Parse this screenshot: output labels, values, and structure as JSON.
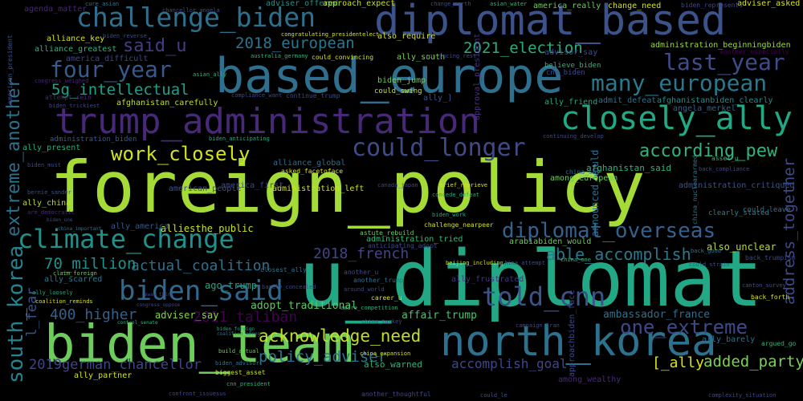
{
  "words": [
    {
      "text": "foreign_policy",
      "color": "#a5db36"
    },
    {
      "text": "u_diplomat",
      "color": "#22a884"
    },
    {
      "text": "biden_team",
      "color": "#6ccd5a"
    },
    {
      "text": "based_europe",
      "color": "#2e6f8e"
    },
    {
      "text": "diplomat_based",
      "color": "#3b528b"
    },
    {
      "text": "trump_administration",
      "color": "#482878"
    },
    {
      "text": "north_korea",
      "color": "#2c728e"
    },
    {
      "text": "challenge_biden",
      "color": "#2d708e"
    },
    {
      "text": "closely_ally",
      "color": "#22a884"
    },
    {
      "text": "climate_change",
      "color": "#20928c"
    },
    {
      "text": "could_longer",
      "color": "#3e4a89"
    },
    {
      "text": "biden_said",
      "color": "#31688e"
    },
    {
      "text": "diplomat_overseas",
      "color": "#34618d"
    },
    {
      "text": "many_european",
      "color": "#2a788e"
    },
    {
      "text": "last_year",
      "color": "#3e4c8a"
    },
    {
      "text": "four_year",
      "color": "#38598c"
    },
    {
      "text": "extreme_another",
      "color": "#2c718e"
    },
    {
      "text": "south_korea",
      "color": "#26828e"
    },
    {
      "text": "told_cnn",
      "color": "#3b528b"
    },
    {
      "text": "one_extreme",
      "color": "#3e4989"
    },
    {
      "text": "acknowledge_need",
      "color": "#c0df25"
    },
    {
      "text": "work_closely",
      "color": "#d2e21b"
    },
    {
      "text": "according_pew",
      "color": "#2fb47c"
    },
    {
      "text": "said_u",
      "color": "#433e85"
    },
    {
      "text": "5g_intellectual",
      "color": "#1fa088"
    },
    {
      "text": "2018_european",
      "color": "#2a768e"
    },
    {
      "text": "2021_election",
      "color": "#29af7f"
    },
    {
      "text": "able_accomplish",
      "color": "#29798e"
    },
    {
      "text": "address_together",
      "color": "#3e4a89"
    },
    {
      "text": "2018_french",
      "color": "#414487"
    },
    {
      "text": "actual_coalition",
      "color": "#2d708e"
    },
    {
      "text": "70_million",
      "color": "#21918c"
    },
    {
      "text": "400_higher",
      "color": "#35608d"
    },
    {
      "text": "2011_taliban",
      "color": "#440154"
    },
    {
      "text": "policy_adviser",
      "color": "#2a768e"
    },
    {
      "text": "2019german_chancellor",
      "color": "#404588"
    },
    {
      "text": "accomplish_goal",
      "color": "#3f4788"
    },
    {
      "text": "added_party",
      "color": "#7ad151"
    },
    {
      "text": "[_ally",
      "color": "#d8e219"
    },
    {
      "text": "l_fear",
      "color": "#3a548c"
    },
    {
      "text": "ambassador_france",
      "color": "#2d708e"
    },
    {
      "text": "adopt_traditional",
      "color": "#5ec962"
    },
    {
      "text": "also_warned",
      "color": "#2db27d"
    },
    {
      "text": "affair_trump",
      "color": "#4ac16d"
    },
    {
      "text": "announced_would",
      "color": "#2e6e8e"
    },
    {
      "text": "also_unclear",
      "color": "#b5de2b"
    },
    {
      "text": "ago_trump",
      "color": "#20a386"
    },
    {
      "text": "adviser_say",
      "color": "#86d549"
    },
    {
      "text": "administration_tried",
      "color": "#38b977"
    },
    {
      "text": "alliesthe_public",
      "color": "#c8e020"
    },
    {
      "text": "ally_america",
      "color": "#38598c"
    },
    {
      "text": "administration_left",
      "color": "#d0e11c"
    },
    {
      "text": "american_people",
      "color": "#3b528b"
    },
    {
      "text": "america_first",
      "color": "#3f4788"
    },
    {
      "text": "afghanistan_said",
      "color": "#2fb47c"
    },
    {
      "text": "among_european",
      "color": "#6ccd5a"
    },
    {
      "text": "administration_critiqued",
      "color": "#3b528b"
    },
    {
      "text": "administration_beginningbiden",
      "color": "#9bd93c"
    },
    {
      "text": "afghanistanbiden_clearly",
      "color": "#218f8d"
    },
    {
      "text": "angela_merkel",
      "color": "#33628d"
    },
    {
      "text": "admit_defeat",
      "color": "#2c728e"
    },
    {
      "text": "ally_friend",
      "color": "#22a884"
    },
    {
      "text": "afghanistan_carefully",
      "color": "#c2df23"
    },
    {
      "text": "alliance_global",
      "color": "#2e6e8e"
    },
    {
      "text": "alliance_key",
      "color": "#d5e21a"
    },
    {
      "text": "alliance_greatest",
      "color": "#2fb47c"
    },
    {
      "text": "america_difficult",
      "color": "#3f4788"
    },
    {
      "text": "agenda_matter",
      "color": "#482677"
    },
    {
      "text": "adviser_offered",
      "color": "#21918c"
    },
    {
      "text": "approach_expect",
      "color": "#c8e020"
    },
    {
      "text": "america_really",
      "color": "#6ccd5a"
    },
    {
      "text": "adviser_asked",
      "color": "#d8e219"
    },
    {
      "text": "change_need",
      "color": "#d2e21b"
    },
    {
      "text": "advisor_say",
      "color": "#3e4a89"
    },
    {
      "text": "approval_president",
      "color": "#46327e"
    },
    {
      "text": "2018_european_note",
      "color": "#1f9e89"
    },
    {
      "text": "could_leave",
      "color": "#2c728e"
    },
    {
      "text": "clearly_stated",
      "color": "#26828e"
    },
    {
      "text": "ally_scarred",
      "color": "#2a788e"
    },
    {
      "text": "ally_frustrated",
      "color": "#46327e"
    },
    {
      "text": "ally_barely",
      "color": "#2c728e"
    },
    {
      "text": "ally_partner",
      "color": "#d8e219"
    },
    {
      "text": "ally_china",
      "color": "#b5de2b"
    },
    {
      "text": "ally_present",
      "color": "#27ad81"
    },
    {
      "text": "among_wealthy",
      "color": "#482878"
    },
    {
      "text": "also_require",
      "color": "#d2e21b"
    },
    {
      "text": "biden_jump",
      "color": "#6ccd5a"
    },
    {
      "text": "could_swing",
      "color": "#c8e020"
    },
    {
      "text": "ally_south",
      "color": "#7ad151"
    },
    {
      "text": "continue_trump",
      "color": "#3e4989"
    },
    {
      "text": "cnn_biden",
      "color": "#3e4a89"
    },
    {
      "text": "believe_biden",
      "color": "#2fb47c"
    },
    {
      "text": "ally_]",
      "color": "#3b528b"
    },
    {
      "text": "attempt_rein",
      "color": "#482677"
    },
    {
      "text": "biden_represents",
      "color": "#3e4989"
    },
    {
      "text": "another_especially",
      "color": "#440154"
    },
    {
      "text": "compliance_want",
      "color": "#3e4a89"
    },
    {
      "text": "could_convincing",
      "color": "#d2e21b"
    },
    {
      "text": "australia_germany",
      "color": "#2fb47c"
    },
    {
      "text": "american_president",
      "color": "#3b528b"
    },
    {
      "text": "congress_weighed",
      "color": "#482677"
    },
    {
      "text": "biden_trickiest",
      "color": "#3e4a89"
    },
    {
      "text": "biden_anticipating",
      "color": "#22a884"
    },
    {
      "text": "biden_must",
      "color": "#3e4989"
    },
    {
      "text": "asked_facetoface",
      "color": "#d8e219"
    },
    {
      "text": "administration_biden",
      "color": "#38598c"
    },
    {
      "text": "bernie_sander",
      "color": "#3b528b"
    },
    {
      "text": "arm_democratic",
      "color": "#482878"
    },
    {
      "text": "biden_one",
      "color": "#3e4a89"
    },
    {
      "text": "china_important",
      "color": "#2a788e"
    },
    {
      "text": "biden_anticipate",
      "color": "#2c728e"
    },
    {
      "text": "biden_work",
      "color": "#22a884"
    },
    {
      "text": "challenge_nearpeer",
      "color": "#d2e21b"
    },
    {
      "text": "arabiabiden_would",
      "color": "#6ccd5a"
    },
    {
      "text": "anticipating_adopt",
      "color": "#3e4989"
    },
    {
      "text": "astute_rebuild",
      "color": "#6ccd5a"
    },
    {
      "text": "beijing_including",
      "color": "#d8e219"
    },
    {
      "text": "china_attempt",
      "color": "#3e4a89"
    },
    {
      "text": "china_one",
      "color": "#2fb47c"
    },
    {
      "text": "could_strain",
      "color": "#3b528b"
    },
    {
      "text": "back_trumpism",
      "color": "#3e4989"
    },
    {
      "text": "back_good",
      "color": "#2c728e"
    },
    {
      "text": "canton_survey",
      "color": "#3b528b"
    },
    {
      "text": "back_forth",
      "color": "#d2e21b"
    },
    {
      "text": "challenge_biden2",
      "color": "#22a884"
    },
    {
      "text": "argued_go",
      "color": "#2fb47c"
    },
    {
      "text": "approachbiden_face",
      "color": "#3e4989"
    },
    {
      "text": "china_expansion",
      "color": "#d8e219"
    },
    {
      "text": "campaign_iran",
      "color": "#3e4a89"
    },
    {
      "text": "build_actual",
      "color": "#6ccd5a"
    },
    {
      "text": "biden_advisor",
      "color": "#2a788e"
    },
    {
      "text": "biggest_asset",
      "color": "#c8e020"
    },
    {
      "text": "confront_issuesus",
      "color": "#3e4989"
    },
    {
      "text": "cnn_president",
      "color": "#2fb47c"
    },
    {
      "text": "complexity_situation",
      "color": "#3e4a89"
    },
    {
      "text": "could_le",
      "color": "#3b528b"
    },
    {
      "text": "another_thoughtful",
      "color": "#3e4989"
    },
    {
      "text": "coalition_among",
      "color": "#2a788e"
    },
    {
      "text": "biden_foreign",
      "color": "#22a884"
    },
    {
      "text": "congress_oppose",
      "color": "#3e4a89"
    },
    {
      "text": "control_senate",
      "color": "#2fb47c"
    },
    {
      "text": "away_think",
      "color": "#3e4989"
    },
    {
      "text": "coalition_reminds",
      "color": "#d8e219"
    },
    {
      "text": "ally_loosely",
      "color": "#22a884"
    },
    {
      "text": "another_trump",
      "color": "#2c728e"
    },
    {
      "text": "another_u",
      "color": "#3e4a89"
    },
    {
      "text": "around_world",
      "color": "#3e4989"
    },
    {
      "text": "career_u",
      "color": "#d2e21b"
    },
    {
      "text": "aware_competition",
      "color": "#2fb47c"
    },
    {
      "text": "china_turkey",
      "color": "#3e4a89"
    },
    {
      "text": "closest_ally",
      "color": "#2c728e"
    },
    {
      "text": "barely_concealed",
      "color": "#3e4989"
    },
    {
      "text": "claim_foreign",
      "color": "#6ccd5a"
    },
    {
      "text": "canada_japan",
      "color": "#3e4a89"
    },
    {
      "text": "concede_defeat",
      "color": "#22a884"
    },
    {
      "text": "brief_reprieve",
      "color": "#d8e219"
    },
    {
      "text": "china_say",
      "color": "#2c728e"
    },
    {
      "text": "asset_u",
      "color": "#2fb47c"
    },
    {
      "text": "back_compliance",
      "color": "#3e4a89"
    },
    {
      "text": "continuing_develop",
      "color": "#3e4989"
    },
    {
      "text": "china_nucleararmed",
      "color": "#2a788e"
    },
    {
      "text": "convincing_rest",
      "color": "#3e4a89"
    },
    {
      "text": "asian_water",
      "color": "#2fb47c"
    },
    {
      "text": "change_north",
      "color": "#3e4989"
    },
    {
      "text": "congratulating_presidentelect",
      "color": "#d8e219"
    },
    {
      "text": "chancellor_angela",
      "color": "#3e4a89"
    },
    {
      "text": "cure_asian",
      "color": "#2c728e"
    },
    {
      "text": "biden_reverse",
      "color": "#3e4989"
    },
    {
      "text": "asian_ally",
      "color": "#2fb47c"
    }
  ]
}
